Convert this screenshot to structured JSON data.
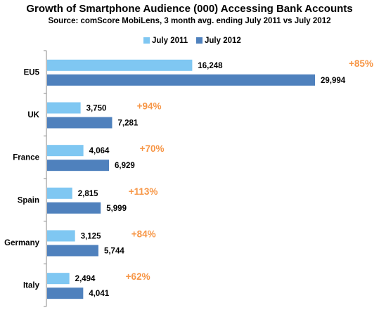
{
  "chart_data": {
    "type": "bar",
    "orientation": "horizontal",
    "title": "Growth of Smartphone Audience (000) Accessing Bank Accounts",
    "subtitle": "Source: comScore MobiLens, 3 month avg. ending July 2011 vs July 2012",
    "categories": [
      "EU5",
      "UK",
      "France",
      "Spain",
      "Germany",
      "Italy"
    ],
    "series": [
      {
        "name": "July 2011",
        "color": "#7fc7f2",
        "values": [
          16248,
          3750,
          4064,
          2815,
          3125,
          2494
        ],
        "labels": [
          "16,248",
          "3,750",
          "4,064",
          "2,815",
          "3,125",
          "2,494"
        ]
      },
      {
        "name": "July 2012",
        "color": "#4f81bd",
        "values": [
          29994,
          7281,
          6929,
          5999,
          5744,
          4041
        ],
        "labels": [
          "29,994",
          "7,281",
          "6,929",
          "5,999",
          "5,744",
          "4,041"
        ]
      }
    ],
    "growth_labels": [
      "+85%",
      "+94%",
      "+70%",
      "+113%",
      "+84%",
      "+62%"
    ],
    "growth_color": "#f79646",
    "xlim": [
      0,
      32000
    ],
    "grid": false,
    "legend_position": "top"
  }
}
